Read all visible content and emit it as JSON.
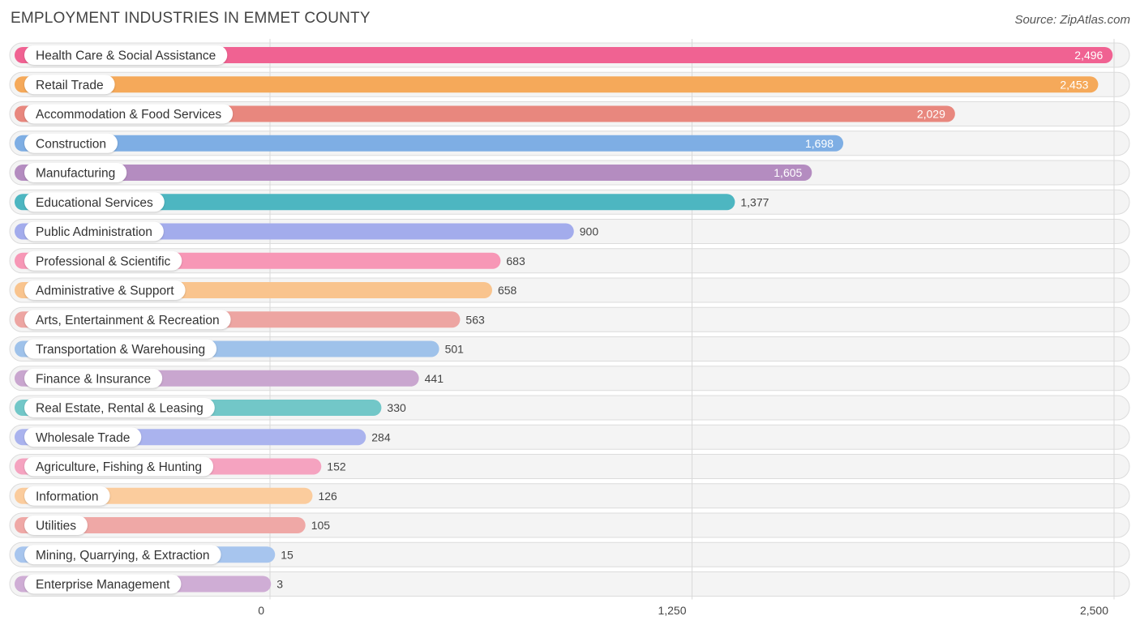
{
  "header": {
    "title": "EMPLOYMENT INDUSTRIES IN EMMET COUNTY",
    "source": "Source: ZipAtlas.com"
  },
  "chart_data": {
    "type": "bar",
    "orientation": "horizontal",
    "title": "EMPLOYMENT INDUSTRIES IN EMMET COUNTY",
    "categories": [
      "Health Care & Social Assistance",
      "Retail Trade",
      "Accommodation & Food Services",
      "Construction",
      "Manufacturing",
      "Educational Services",
      "Public Administration",
      "Professional & Scientific",
      "Administrative & Support",
      "Arts, Entertainment & Recreation",
      "Transportation & Warehousing",
      "Finance & Insurance",
      "Real Estate, Rental & Leasing",
      "Wholesale Trade",
      "Agriculture, Fishing & Hunting",
      "Information",
      "Utilities",
      "Mining, Quarrying, & Extraction",
      "Enterprise Management"
    ],
    "values": [
      2496,
      2453,
      2029,
      1698,
      1605,
      1377,
      900,
      683,
      658,
      563,
      501,
      441,
      330,
      284,
      152,
      126,
      105,
      15,
      3
    ],
    "value_labels": [
      "2,496",
      "2,453",
      "2,029",
      "1,698",
      "1,605",
      "1,377",
      "900",
      "683",
      "658",
      "563",
      "501",
      "441",
      "330",
      "284",
      "152",
      "126",
      "105",
      "15",
      "3"
    ],
    "colors": [
      "#f06292",
      "#f5a95a",
      "#e8877e",
      "#7eaee4",
      "#b48cc0",
      "#4db6c1",
      "#a3acec",
      "#f797b6",
      "#f9c48e",
      "#eda5a2",
      "#9fc2ea",
      "#c9a6cf",
      "#72c7c8",
      "#aab3ee",
      "#f5a3c0",
      "#fbcc9d",
      "#efa8a6",
      "#a7c5ee",
      "#cfadd5"
    ],
    "xticks": [
      0,
      1250,
      2500
    ],
    "xtick_labels": [
      "0",
      "1,250",
      "2,500"
    ],
    "xlim": [
      0,
      2500
    ],
    "grid": true
  }
}
